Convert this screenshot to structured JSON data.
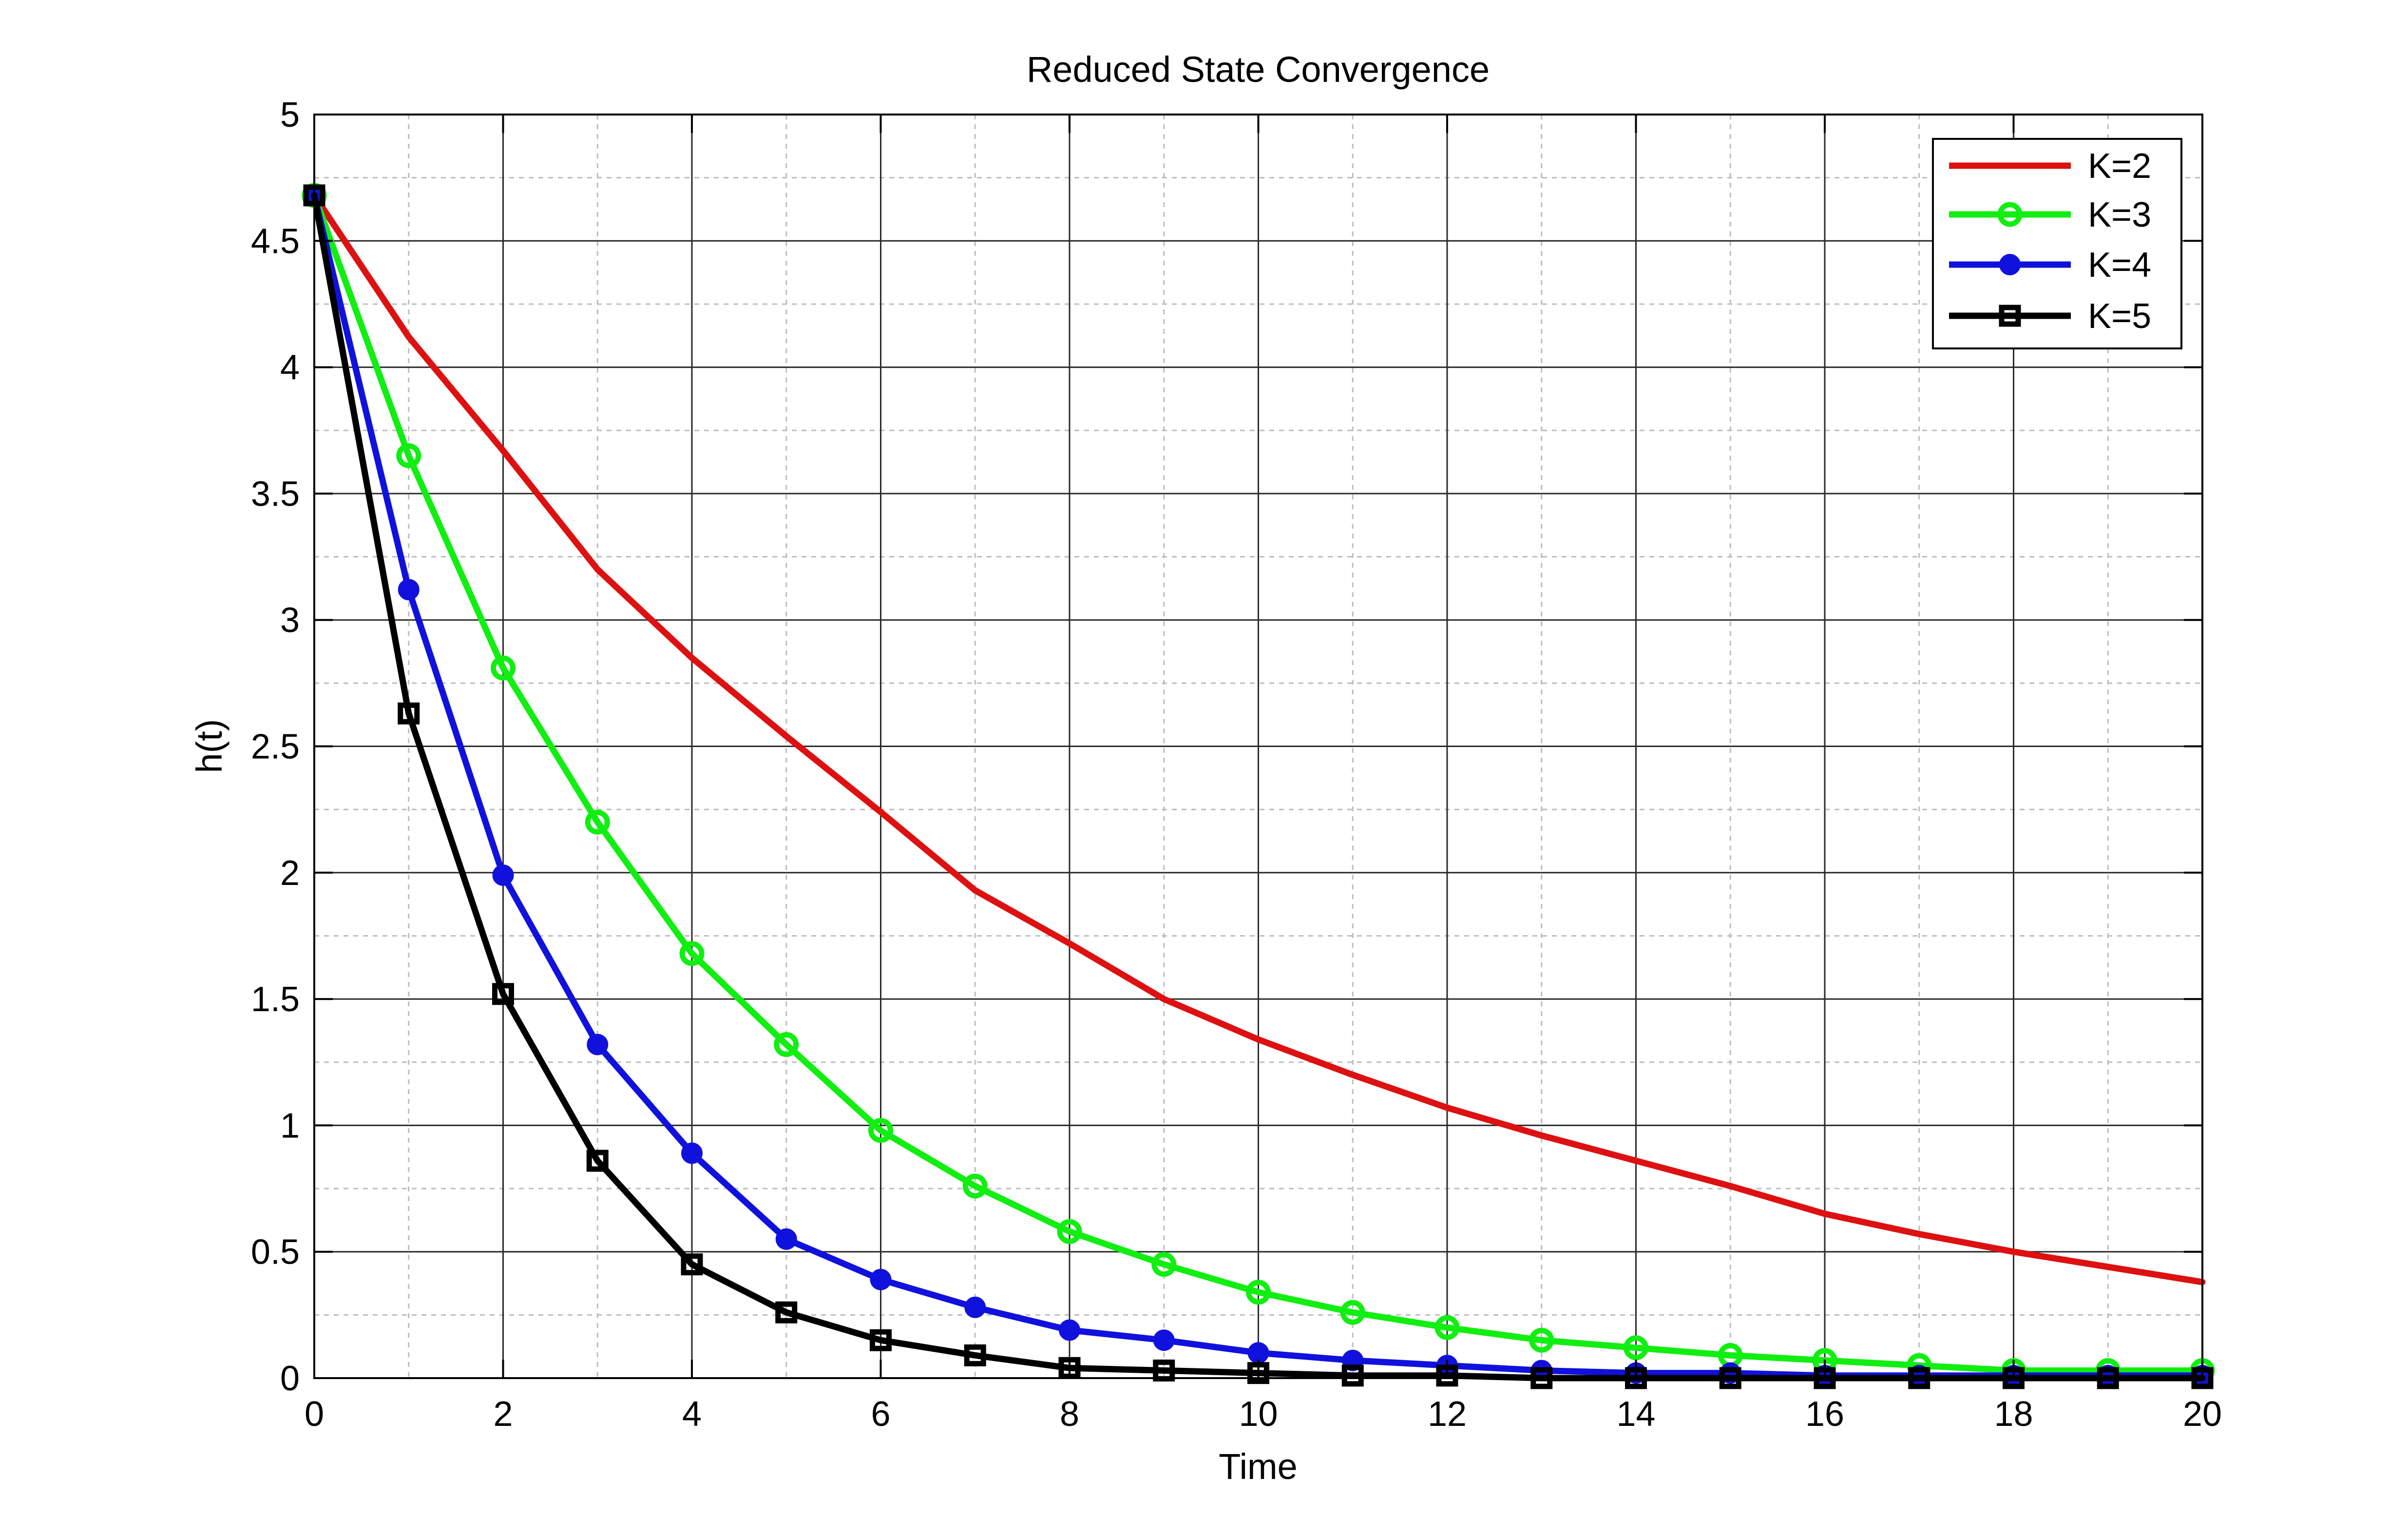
{
  "chart_data": {
    "type": "line",
    "title": "Reduced State Convergence",
    "xlabel": "Time",
    "ylabel": "h(t)",
    "xlim": [
      0,
      20
    ],
    "ylim": [
      0,
      5
    ],
    "xticks": [
      0,
      2,
      4,
      6,
      8,
      10,
      12,
      14,
      16,
      18,
      20
    ],
    "yticks": [
      0,
      0.5,
      1,
      1.5,
      2,
      2.5,
      3,
      3.5,
      4,
      4.5,
      5
    ],
    "xtick_labels": [
      "0",
      "2",
      "4",
      "6",
      "8",
      "10",
      "12",
      "14",
      "16",
      "18",
      "20"
    ],
    "ytick_labels": [
      "0",
      "0.5",
      "1",
      "1.5",
      "2",
      "2.5",
      "3",
      "3.5",
      "4",
      "4.5",
      "5"
    ],
    "grid": true,
    "minor_grid": true,
    "legend_position": "top-right",
    "x": [
      0,
      1,
      2,
      3,
      4,
      5,
      6,
      7,
      8,
      9,
      10,
      11,
      12,
      13,
      14,
      15,
      16,
      17,
      18,
      19,
      20
    ],
    "series": [
      {
        "name": "K=2",
        "color": "#dd1111",
        "marker": "none",
        "values": [
          4.68,
          4.12,
          3.67,
          3.2,
          2.85,
          2.54,
          2.24,
          1.93,
          1.72,
          1.5,
          1.34,
          1.2,
          1.07,
          0.96,
          0.86,
          0.76,
          0.65,
          0.57,
          0.5,
          0.44,
          0.38
        ]
      },
      {
        "name": "K=3",
        "color": "#11ee11",
        "marker": "circle",
        "values": [
          4.68,
          3.65,
          2.81,
          2.2,
          1.68,
          1.32,
          0.98,
          0.76,
          0.58,
          0.45,
          0.34,
          0.26,
          0.2,
          0.15,
          0.12,
          0.09,
          0.07,
          0.05,
          0.03,
          0.03,
          0.03
        ]
      },
      {
        "name": "K=4",
        "color": "#1111dd",
        "marker": "dot",
        "values": [
          4.68,
          3.12,
          1.99,
          1.32,
          0.89,
          0.55,
          0.39,
          0.28,
          0.19,
          0.15,
          0.1,
          0.07,
          0.05,
          0.03,
          0.02,
          0.02,
          0.01,
          0.01,
          0.01,
          0.01,
          0.01
        ]
      },
      {
        "name": "K=5",
        "color": "#000000",
        "marker": "square",
        "values": [
          4.68,
          2.63,
          1.52,
          0.86,
          0.45,
          0.26,
          0.15,
          0.09,
          0.04,
          0.03,
          0.02,
          0.01,
          0.01,
          0.0,
          0.0,
          0.0,
          0.0,
          0.0,
          0.0,
          0.0,
          0.0
        ]
      }
    ]
  }
}
